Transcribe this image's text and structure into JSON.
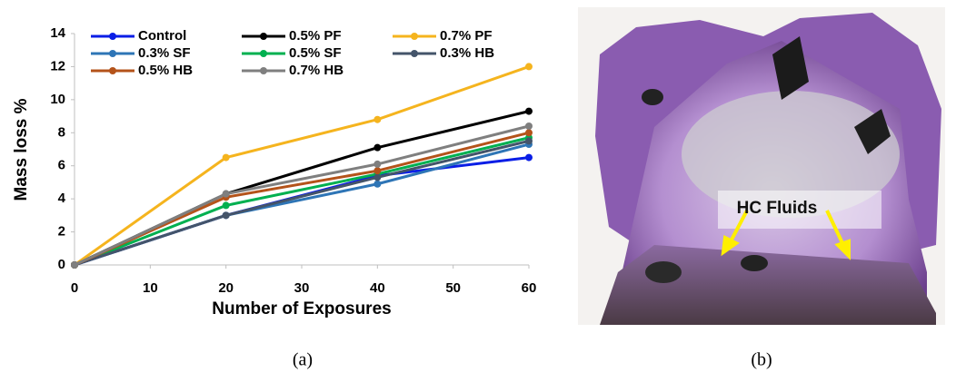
{
  "chart_data": {
    "type": "line",
    "x_label": "Number of Exposures",
    "y_label": "Mass loss %",
    "x": [
      0,
      20,
      40,
      60
    ],
    "series": [
      {
        "name": "Control",
        "color": "#0a1ee6",
        "values": [
          0,
          3.0,
          5.4,
          6.5
        ]
      },
      {
        "name": "0.5% PF",
        "color": "#000000",
        "values": [
          0,
          4.3,
          7.1,
          9.3
        ]
      },
      {
        "name": "0.7% PF",
        "color": "#f5b41e",
        "values": [
          0,
          6.5,
          8.8,
          12.0
        ]
      },
      {
        "name": "0.3% SF",
        "color": "#2e75b6",
        "values": [
          0,
          3.0,
          4.9,
          7.3
        ]
      },
      {
        "name": "0.5% SF",
        "color": "#00b050",
        "values": [
          0,
          3.6,
          5.5,
          7.7
        ]
      },
      {
        "name": "0.3% HB",
        "color": "#44546a",
        "values": [
          0,
          3.0,
          5.3,
          7.5
        ]
      },
      {
        "name": "0.5% HB",
        "color": "#b4531a",
        "values": [
          0,
          4.1,
          5.7,
          8.0
        ]
      },
      {
        "name": "0.7% HB",
        "color": "#7f7f7f",
        "values": [
          0,
          4.3,
          6.1,
          8.4
        ]
      }
    ],
    "xlim": [
      0,
      60
    ],
    "xticks": [
      0,
      10,
      20,
      30,
      40,
      50,
      60
    ],
    "ylim": [
      0,
      14
    ],
    "yticks": [
      0,
      2,
      4,
      6,
      8,
      10,
      12,
      14
    ],
    "legend": "top-left",
    "legend_columns": 3
  },
  "photo_annotation": "HC Fluids",
  "panel_labels": [
    "(a)",
    "(b)"
  ]
}
